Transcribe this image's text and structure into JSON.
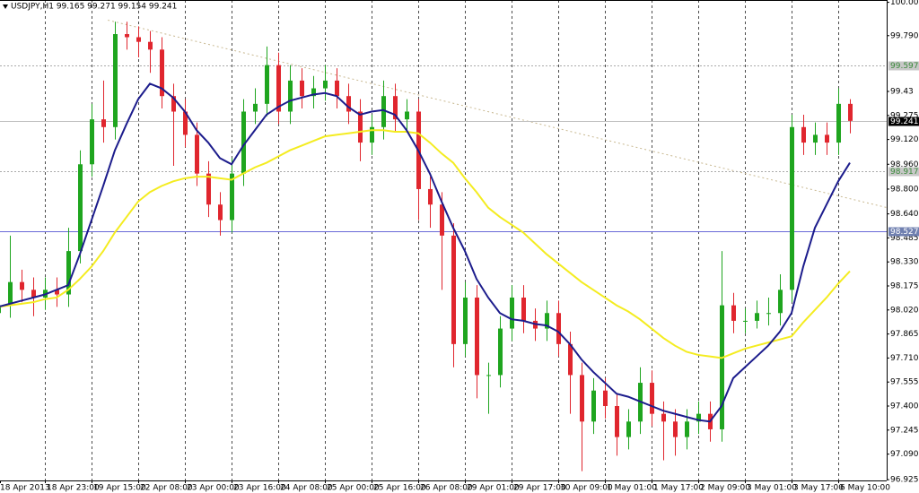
{
  "chart_data": {
    "type": "candlestick",
    "title": "USDJPY,H1  99.165 99.271 99.154 99.241",
    "categories": [
      "18 Apr 2013",
      null,
      null,
      null,
      "18 Apr 23:00",
      null,
      null,
      null,
      "19 Apr 15:00",
      null,
      null,
      null,
      "22 Apr 08:00",
      null,
      null,
      null,
      "23 Apr 00:00",
      null,
      null,
      null,
      "23 Apr 16:00",
      null,
      null,
      null,
      "24 Apr 08:00",
      null,
      null,
      null,
      "25 Apr 00:00",
      null,
      null,
      null,
      "25 Apr 16:00",
      null,
      null,
      null,
      "26 Apr 08:00",
      null,
      null,
      null,
      "29 Apr 01:00",
      null,
      null,
      null,
      "29 Apr 17:00",
      null,
      null,
      null,
      "30 Apr 09:00",
      null,
      null,
      null,
      "1 May 01:00",
      null,
      null,
      null,
      "1 May 17:00",
      null,
      null,
      null,
      "2 May 09:00",
      null,
      null,
      null,
      "3 May 01:00",
      null,
      null,
      null,
      "3 May 17:00",
      null,
      null,
      null,
      "6 May 10:00",
      null
    ],
    "open": [
      98.0,
      98.05,
      98.2,
      98.15,
      98.1,
      98.15,
      98.12,
      98.4,
      98.96,
      99.25,
      99.2,
      99.8,
      99.78,
      99.75,
      99.7,
      99.4,
      99.3,
      99.15,
      98.9,
      98.7,
      98.6,
      98.9,
      99.3,
      99.35,
      99.6,
      99.3,
      99.5,
      99.4,
      99.45,
      99.5,
      99.4,
      99.3,
      99.1,
      99.2,
      99.4,
      99.25,
      99.3,
      98.8,
      98.7,
      98.5,
      97.8,
      98.1,
      97.6,
      97.6,
      97.9,
      98.1,
      97.95,
      97.9,
      98.0,
      97.8,
      97.6,
      97.3,
      97.5,
      97.4,
      97.2,
      97.3,
      97.55,
      97.35,
      97.3,
      97.2,
      97.3,
      97.35,
      97.25,
      98.05,
      97.95,
      97.95,
      98.0,
      98.0,
      98.15,
      99.2,
      99.1,
      99.15,
      99.1,
      99.35
    ],
    "high": [
      98.13,
      98.5,
      98.28,
      98.23,
      98.23,
      98.23,
      98.55,
      99.05,
      99.35,
      99.5,
      99.88,
      99.88,
      99.85,
      99.82,
      99.78,
      99.48,
      99.38,
      99.23,
      98.98,
      98.78,
      99.0,
      99.38,
      99.45,
      99.72,
      99.68,
      99.6,
      99.58,
      99.53,
      99.6,
      99.58,
      99.48,
      99.38,
      99.28,
      99.5,
      99.48,
      99.38,
      99.38,
      98.88,
      98.78,
      98.58,
      98.2,
      98.18,
      97.68,
      97.98,
      98.18,
      98.18,
      98.03,
      98.08,
      98.08,
      97.88,
      97.68,
      97.58,
      97.58,
      97.48,
      97.38,
      97.65,
      97.63,
      97.43,
      97.38,
      97.38,
      97.43,
      97.43,
      98.4,
      98.13,
      98.03,
      98.08,
      98.1,
      98.25,
      99.28,
      99.28,
      99.23,
      99.23,
      99.45,
      99.38
    ],
    "low": [
      97.85,
      97.97,
      98.07,
      97.98,
      98.02,
      98.04,
      98.04,
      98.32,
      98.88,
      99.1,
      99.12,
      99.7,
      99.65,
      99.55,
      99.32,
      98.95,
      99.07,
      98.82,
      98.62,
      98.5,
      98.52,
      98.82,
      99.22,
      99.27,
      99.22,
      99.22,
      99.32,
      99.32,
      99.37,
      99.32,
      99.22,
      98.98,
      99.02,
      99.12,
      99.17,
      99.17,
      98.6,
      98.55,
      98.15,
      97.65,
      97.72,
      97.45,
      97.35,
      97.52,
      97.82,
      97.87,
      97.82,
      97.82,
      97.72,
      97.35,
      96.98,
      97.22,
      97.32,
      97.08,
      97.12,
      97.22,
      97.27,
      97.05,
      97.08,
      97.12,
      97.22,
      97.17,
      97.17,
      97.87,
      97.87,
      97.9,
      97.92,
      97.92,
      98.07,
      99.02,
      99.02,
      99.02,
      99.02,
      99.16
    ],
    "close": [
      98.05,
      98.2,
      98.15,
      98.1,
      98.15,
      98.12,
      98.4,
      98.96,
      99.25,
      99.2,
      99.8,
      99.78,
      99.75,
      99.7,
      99.4,
      99.3,
      99.15,
      98.9,
      98.7,
      98.6,
      98.9,
      99.3,
      99.35,
      99.6,
      99.3,
      99.5,
      99.4,
      99.45,
      99.5,
      99.4,
      99.3,
      99.1,
      99.2,
      99.4,
      99.25,
      99.3,
      98.8,
      98.7,
      98.5,
      97.8,
      98.1,
      97.6,
      97.6,
      97.9,
      98.1,
      97.95,
      97.9,
      98.0,
      97.8,
      97.6,
      97.3,
      97.5,
      97.4,
      97.2,
      97.3,
      97.55,
      97.35,
      97.3,
      97.2,
      97.3,
      97.35,
      97.25,
      98.05,
      97.95,
      97.95,
      98.0,
      98.0,
      98.15,
      99.2,
      99.1,
      99.15,
      99.1,
      99.35,
      99.24
    ],
    "up_color": "#1fa51f",
    "down_color": "#e0262e",
    "lines": [
      {
        "color": "#f4ec20",
        "values": [
          98.04,
          98.05,
          98.06,
          98.07,
          98.09,
          98.1,
          98.15,
          98.22,
          98.3,
          98.4,
          98.52,
          98.62,
          98.72,
          98.78,
          98.82,
          98.85,
          98.87,
          98.88,
          98.88,
          98.87,
          98.86,
          98.9,
          98.94,
          98.97,
          99.01,
          99.05,
          99.08,
          99.11,
          99.14,
          99.15,
          99.16,
          99.17,
          99.18,
          99.18,
          99.17,
          99.17,
          99.16,
          99.1,
          99.03,
          98.97,
          98.87,
          98.78,
          98.68,
          98.62,
          98.57,
          98.52,
          98.45,
          98.38,
          98.32,
          98.26,
          98.2,
          98.15,
          98.1,
          98.05,
          98.01,
          97.96,
          97.9,
          97.84,
          97.79,
          97.75,
          97.73,
          97.72,
          97.71,
          97.74,
          97.77,
          97.79,
          97.81,
          97.83,
          97.85,
          97.94,
          98.02,
          98.1,
          98.19,
          98.27
        ]
      },
      {
        "color": "#1c1c8c",
        "values": [
          98.04,
          98.06,
          98.08,
          98.1,
          98.12,
          98.15,
          98.18,
          98.38,
          98.6,
          98.82,
          99.05,
          99.22,
          99.38,
          99.48,
          99.45,
          99.39,
          99.3,
          99.18,
          99.1,
          99.0,
          98.96,
          99.08,
          99.18,
          99.28,
          99.33,
          99.37,
          99.39,
          99.41,
          99.42,
          99.4,
          99.33,
          99.28,
          99.3,
          99.31,
          99.28,
          99.18,
          99.05,
          98.9,
          98.72,
          98.55,
          98.4,
          98.22,
          98.1,
          98.0,
          97.96,
          97.95,
          97.93,
          97.92,
          97.88,
          97.8,
          97.7,
          97.62,
          97.55,
          97.48,
          97.46,
          97.43,
          97.4,
          97.37,
          97.35,
          97.33,
          97.31,
          97.3,
          97.4,
          97.58,
          97.65,
          97.72,
          97.79,
          97.88,
          98.0,
          98.3,
          98.55,
          98.7,
          98.85,
          98.97
        ]
      }
    ],
    "trendline": {
      "x": [
        9.4,
        76.2
      ],
      "values": [
        99.89,
        98.68
      ],
      "color": "#c8b890"
    },
    "levels": [
      {
        "value": 99.597,
        "label": "99.597",
        "color": "#aaaaaa",
        "style": "dotted",
        "label_bg": "#c8c8c8",
        "label_color": "#3a8a3a"
      },
      {
        "value": 99.241,
        "label": "99.241",
        "color": "#c0c0c0",
        "style": "solid",
        "label_bg": "#000000",
        "label_color": "#ffffff"
      },
      {
        "value": 98.917,
        "label": "98.917",
        "color": "#aaaaaa",
        "style": "dotted",
        "label_bg": "#c8c8c8",
        "label_color": "#3a8a3a"
      },
      {
        "value": 98.527,
        "label": "98.527",
        "color": "#6a6ad8",
        "style": "solid",
        "label_bg": "#7080b0",
        "label_color": "#ffffff"
      }
    ],
    "ylim": [
      96.92,
      100.02
    ],
    "yticks": [
      100.005,
      {
        "value": 99.79,
        "label": "99.790"
      },
      99.43,
      99.275,
      {
        "value": 99.12,
        "label": "99.120"
      },
      {
        "value": 98.96,
        "label": "98.960"
      },
      {
        "value": 98.8,
        "label": "98.800"
      },
      {
        "value": 98.64,
        "label": "98.640"
      },
      98.485,
      {
        "value": 98.33,
        "label": "98.330"
      },
      98.175,
      {
        "value": 98.02,
        "label": "98.020"
      },
      97.865,
      {
        "value": 97.71,
        "label": "97.710"
      },
      97.555,
      {
        "value": 97.4,
        "label": "97.400"
      },
      97.245,
      {
        "value": 97.09,
        "label": "97.090"
      },
      96.925
    ],
    "grid": "vertical"
  }
}
